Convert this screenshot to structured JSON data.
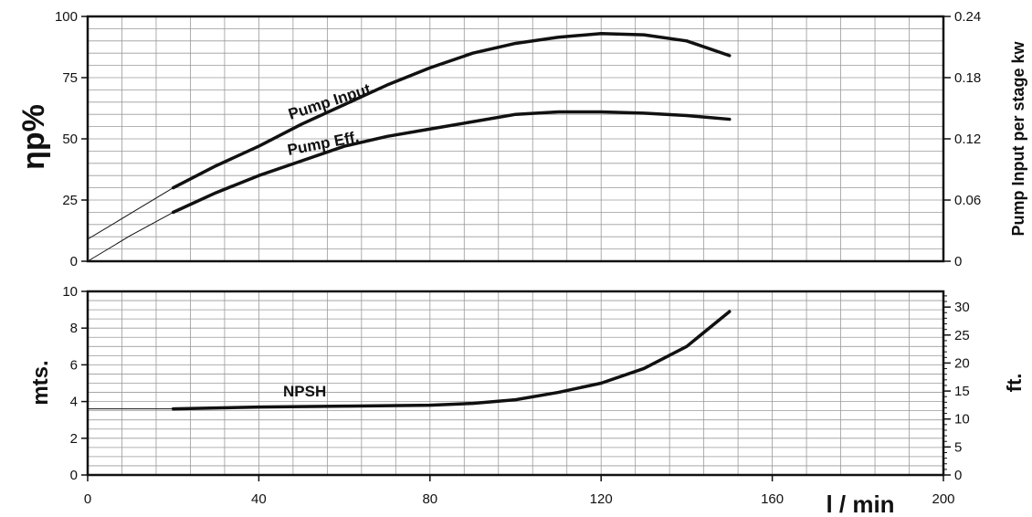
{
  "chart_data": [
    {
      "type": "line",
      "grid": true,
      "xlabel": "",
      "ylabel": "ηp%",
      "y2label": "Pump Input per stage kw",
      "xlim": [
        0,
        200
      ],
      "ylim": [
        0,
        100
      ],
      "y2lim": [
        0,
        0.24
      ],
      "yticks": [
        "0",
        "25",
        "50",
        "75",
        "100"
      ],
      "y2ticks": [
        "0",
        "0.06",
        "0.12",
        "0.18",
        "0.24"
      ],
      "series": [
        {
          "name": "Pump Input",
          "x": [
            20,
            30,
            40,
            50,
            60,
            70,
            80,
            90,
            100,
            110,
            120,
            130,
            140,
            150
          ],
          "y": [
            30,
            39,
            47,
            56,
            64,
            72,
            79,
            85,
            89,
            91.5,
            93,
            92.5,
            90,
            84
          ],
          "extrapolated_x": [
            0,
            10,
            20
          ],
          "extrapolated_y": [
            9,
            19.5,
            30
          ]
        },
        {
          "name": "Pump Eff.",
          "x": [
            20,
            30,
            40,
            50,
            60,
            70,
            80,
            90,
            100,
            110,
            120,
            130,
            140,
            150
          ],
          "y": [
            20,
            28,
            35,
            41,
            47,
            51,
            54,
            57,
            60,
            61,
            61,
            60.5,
            59.5,
            58
          ],
          "extrapolated_x": [
            0,
            10,
            20
          ],
          "extrapolated_y": [
            0,
            10.5,
            20
          ]
        }
      ]
    },
    {
      "type": "line",
      "grid": true,
      "xlabel": "l / min",
      "ylabel": "mts.",
      "y2label": "ft.",
      "xlim": [
        0,
        200
      ],
      "ylim": [
        0,
        10
      ],
      "y2lim": [
        0,
        32.8
      ],
      "xticks": [
        "0",
        "40",
        "80",
        "120",
        "160",
        "200"
      ],
      "yticks": [
        "0",
        "2",
        "4",
        "6",
        "8",
        "10"
      ],
      "y2ticks": [
        "0",
        "5",
        "10",
        "15",
        "20",
        "25",
        "30"
      ],
      "series": [
        {
          "name": "NPSH",
          "x": [
            20,
            40,
            60,
            80,
            90,
            100,
            110,
            120,
            130,
            140,
            150
          ],
          "y": [
            3.6,
            3.7,
            3.75,
            3.8,
            3.9,
            4.1,
            4.5,
            5.0,
            5.8,
            7.0,
            8.9
          ],
          "extrapolated_x": [
            0,
            10,
            20
          ],
          "extrapolated_y": [
            3.6,
            3.6,
            3.6
          ]
        }
      ]
    }
  ]
}
